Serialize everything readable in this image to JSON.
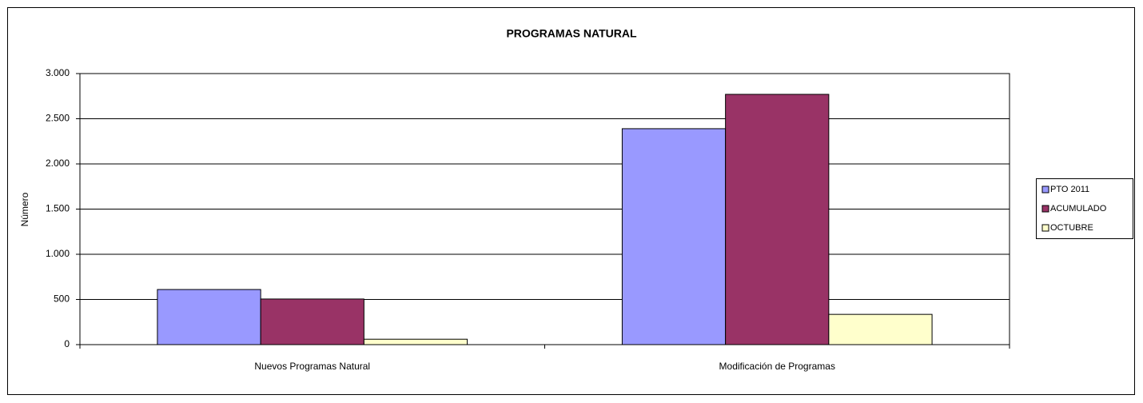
{
  "chart_data": {
    "type": "bar",
    "title": "PROGRAMAS NATURAL",
    "y_label": "Número",
    "categories": [
      "Nuevos Programas Natural",
      "Modificación de Programas"
    ],
    "series": [
      {
        "name": "PTO  2011",
        "color": "#9999ff",
        "values": [
          610,
          2390
        ]
      },
      {
        "name": "ACUMULADO",
        "color": "#993366",
        "values": [
          505,
          2770
        ]
      },
      {
        "name": "OCTUBRE",
        "color": "#ffffcc",
        "values": [
          60,
          335
        ]
      }
    ],
    "ylim": [
      0,
      3000
    ],
    "yticks": [
      0,
      500,
      {
        "value": 1000,
        "label": "1.000"
      },
      {
        "value": 1500,
        "label": "1.500"
      },
      {
        "value": 2000,
        "label": "2.000"
      },
      {
        "value": 2500,
        "label": "2.500"
      },
      {
        "value": 3000,
        "label": "3.000"
      }
    ],
    "grid": true,
    "legend": "right"
  }
}
